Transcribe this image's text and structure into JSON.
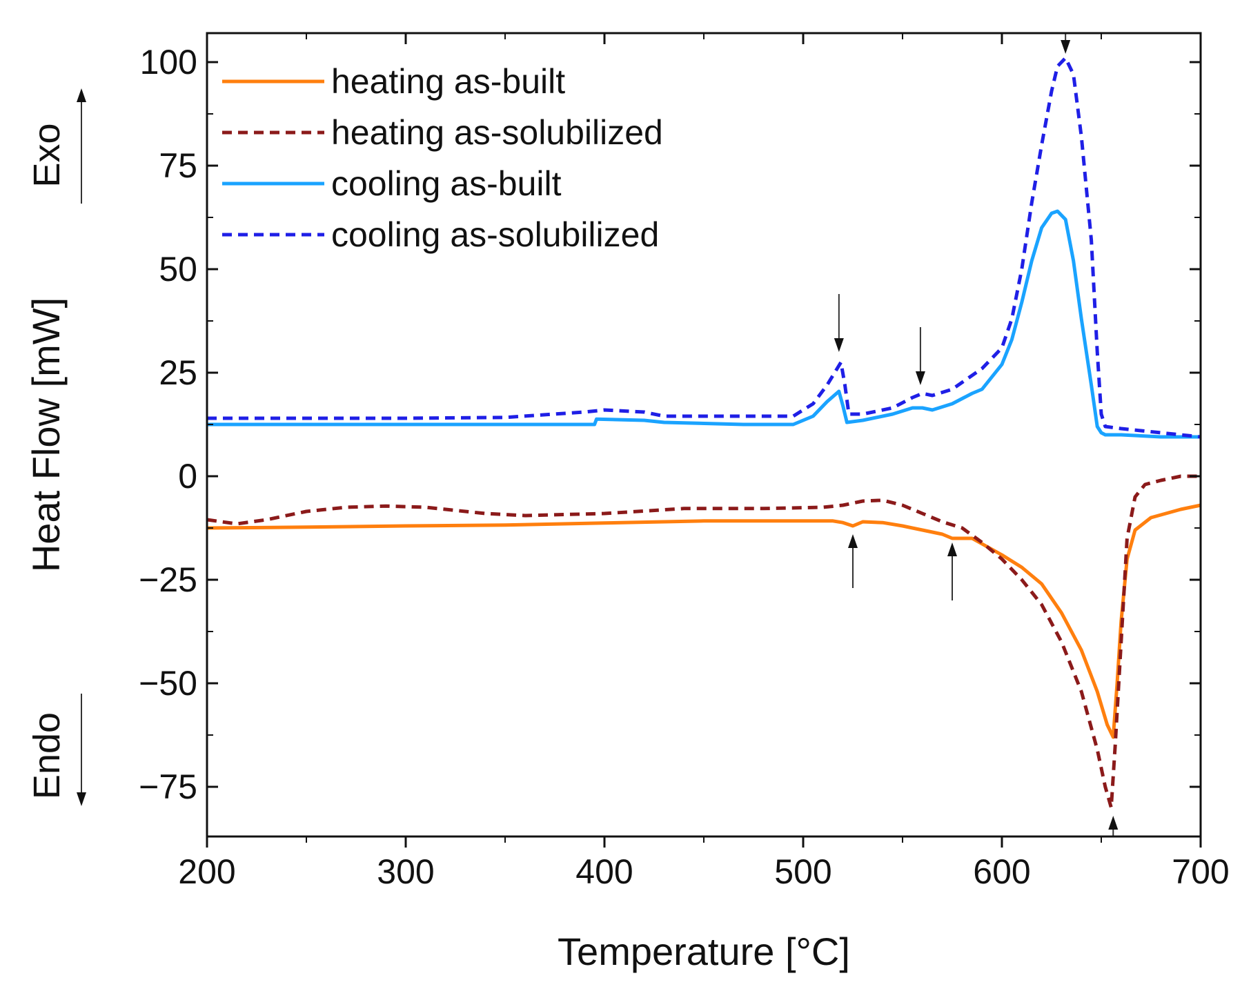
{
  "chart_data": {
    "type": "line",
    "title": "",
    "xlabel": "Temperature [°C]",
    "ylabel": "Heat Flow [mW]",
    "xlim": [
      200,
      700
    ],
    "ylim": [
      -87,
      107
    ],
    "xticks": [
      200,
      300,
      400,
      500,
      600,
      700
    ],
    "xtick_labels": [
      "200",
      "300",
      "400",
      "500",
      "600",
      "700"
    ],
    "yticks": [
      -75,
      -50,
      -25,
      0,
      25,
      50,
      75,
      100
    ],
    "ytick_labels": [
      "−75",
      "−50",
      "−25",
      "0",
      "25",
      "50",
      "75",
      "100"
    ],
    "exo_label": "Exo",
    "endo_label": "Endo",
    "grid": false,
    "legend_position": "top-left",
    "series": [
      {
        "name": "heating as-built",
        "color": "#ff7f0e",
        "dash": "solid",
        "x": [
          200,
          250,
          300,
          350,
          400,
          450,
          500,
          515,
          520,
          525,
          530,
          540,
          550,
          560,
          570,
          575,
          585,
          600,
          610,
          620,
          630,
          640,
          648,
          653,
          656,
          658,
          660,
          663,
          667,
          675,
          690,
          700
        ],
        "y": [
          -12.5,
          -12.3,
          -12.0,
          -11.8,
          -11.3,
          -10.8,
          -10.8,
          -10.8,
          -11.2,
          -12.0,
          -11.0,
          -11.2,
          -12.0,
          -13.0,
          -14.0,
          -15.0,
          -15.0,
          -19.0,
          -22.0,
          -26.0,
          -33.0,
          -42.0,
          -52.0,
          -60.0,
          -63.0,
          -50.0,
          -35.0,
          -20.0,
          -13.0,
          -10.0,
          -8.0,
          -7.0
        ]
      },
      {
        "name": "heating as-solubilized",
        "color": "#8b1a1a",
        "dash": "dashed",
        "x": [
          200,
          215,
          230,
          250,
          270,
          290,
          310,
          340,
          360,
          400,
          440,
          480,
          510,
          520,
          525,
          530,
          540,
          550,
          560,
          570,
          580,
          590,
          600,
          610,
          620,
          630,
          640,
          648,
          652,
          655,
          657,
          660,
          663,
          667,
          672,
          680,
          690,
          700
        ],
        "y": [
          -10.5,
          -11.5,
          -10.5,
          -8.5,
          -7.5,
          -7.2,
          -7.5,
          -9.0,
          -9.5,
          -9.0,
          -7.8,
          -7.8,
          -7.5,
          -7.0,
          -6.5,
          -6.0,
          -5.8,
          -7.0,
          -9.0,
          -11.0,
          -12.5,
          -16.0,
          -20.0,
          -25.0,
          -31.0,
          -40.0,
          -52.0,
          -66.0,
          -75.0,
          -80.0,
          -65.0,
          -40.0,
          -15.0,
          -5.0,
          -2.0,
          -1.0,
          0.0,
          0.0
        ]
      },
      {
        "name": "cooling as-built",
        "color": "#1aa3ff",
        "dash": "solid",
        "x": [
          200,
          250,
          300,
          350,
          395,
          396,
          420,
          430,
          470,
          495,
          505,
          512,
          518,
          520,
          522,
          530,
          545,
          555,
          560,
          565,
          575,
          585,
          590,
          600,
          605,
          610,
          615,
          620,
          625,
          628,
          632,
          636,
          640,
          645,
          648,
          650,
          652,
          660,
          680,
          700
        ],
        "y": [
          12.5,
          12.5,
          12.5,
          12.5,
          12.5,
          13.8,
          13.5,
          13.0,
          12.5,
          12.5,
          14.5,
          18.0,
          20.5,
          17.0,
          13.0,
          13.5,
          15.0,
          16.5,
          16.5,
          16.0,
          17.5,
          20.0,
          21.0,
          27.0,
          33.0,
          42.0,
          52.0,
          60.0,
          63.5,
          64.0,
          62.0,
          52.0,
          38.0,
          22.0,
          12.0,
          10.5,
          10.0,
          10.0,
          9.5,
          9.5
        ]
      },
      {
        "name": "cooling as-solubilized",
        "color": "#1f1fe6",
        "dash": "dashed",
        "x": [
          200,
          250,
          300,
          350,
          390,
          400,
          420,
          430,
          470,
          495,
          505,
          512,
          519,
          521,
          523,
          530,
          545,
          555,
          560,
          565,
          575,
          590,
          600,
          605,
          610,
          615,
          620,
          625,
          628,
          632,
          636,
          640,
          645,
          648,
          650,
          652,
          660,
          680,
          700
        ],
        "y": [
          14.0,
          14.0,
          14.0,
          14.2,
          15.5,
          16.0,
          15.5,
          14.5,
          14.5,
          14.5,
          17.5,
          22.0,
          27.5,
          22.0,
          15.0,
          15.0,
          16.5,
          19.0,
          20.0,
          19.5,
          21.0,
          26.0,
          31.0,
          38.0,
          50.0,
          66.0,
          80.0,
          93.0,
          99.0,
          101.0,
          97.0,
          82.0,
          57.0,
          30.0,
          15.0,
          12.0,
          11.5,
          10.5,
          9.5
        ]
      }
    ],
    "annotations": [
      {
        "type": "arrow-down",
        "x": 518,
        "y_from": 44,
        "y_to": 30
      },
      {
        "type": "arrow-down",
        "x": 559,
        "y_from": 36,
        "y_to": 22
      },
      {
        "type": "arrow-down",
        "x": 632,
        "y_from": 107,
        "y_to": 102
      },
      {
        "type": "arrow-up",
        "x": 525,
        "y_from": -27,
        "y_to": -14
      },
      {
        "type": "arrow-up",
        "x": 575,
        "y_from": -30,
        "y_to": -16
      },
      {
        "type": "arrow-up",
        "x": 656,
        "y_from": -87,
        "y_to": -82
      }
    ]
  }
}
